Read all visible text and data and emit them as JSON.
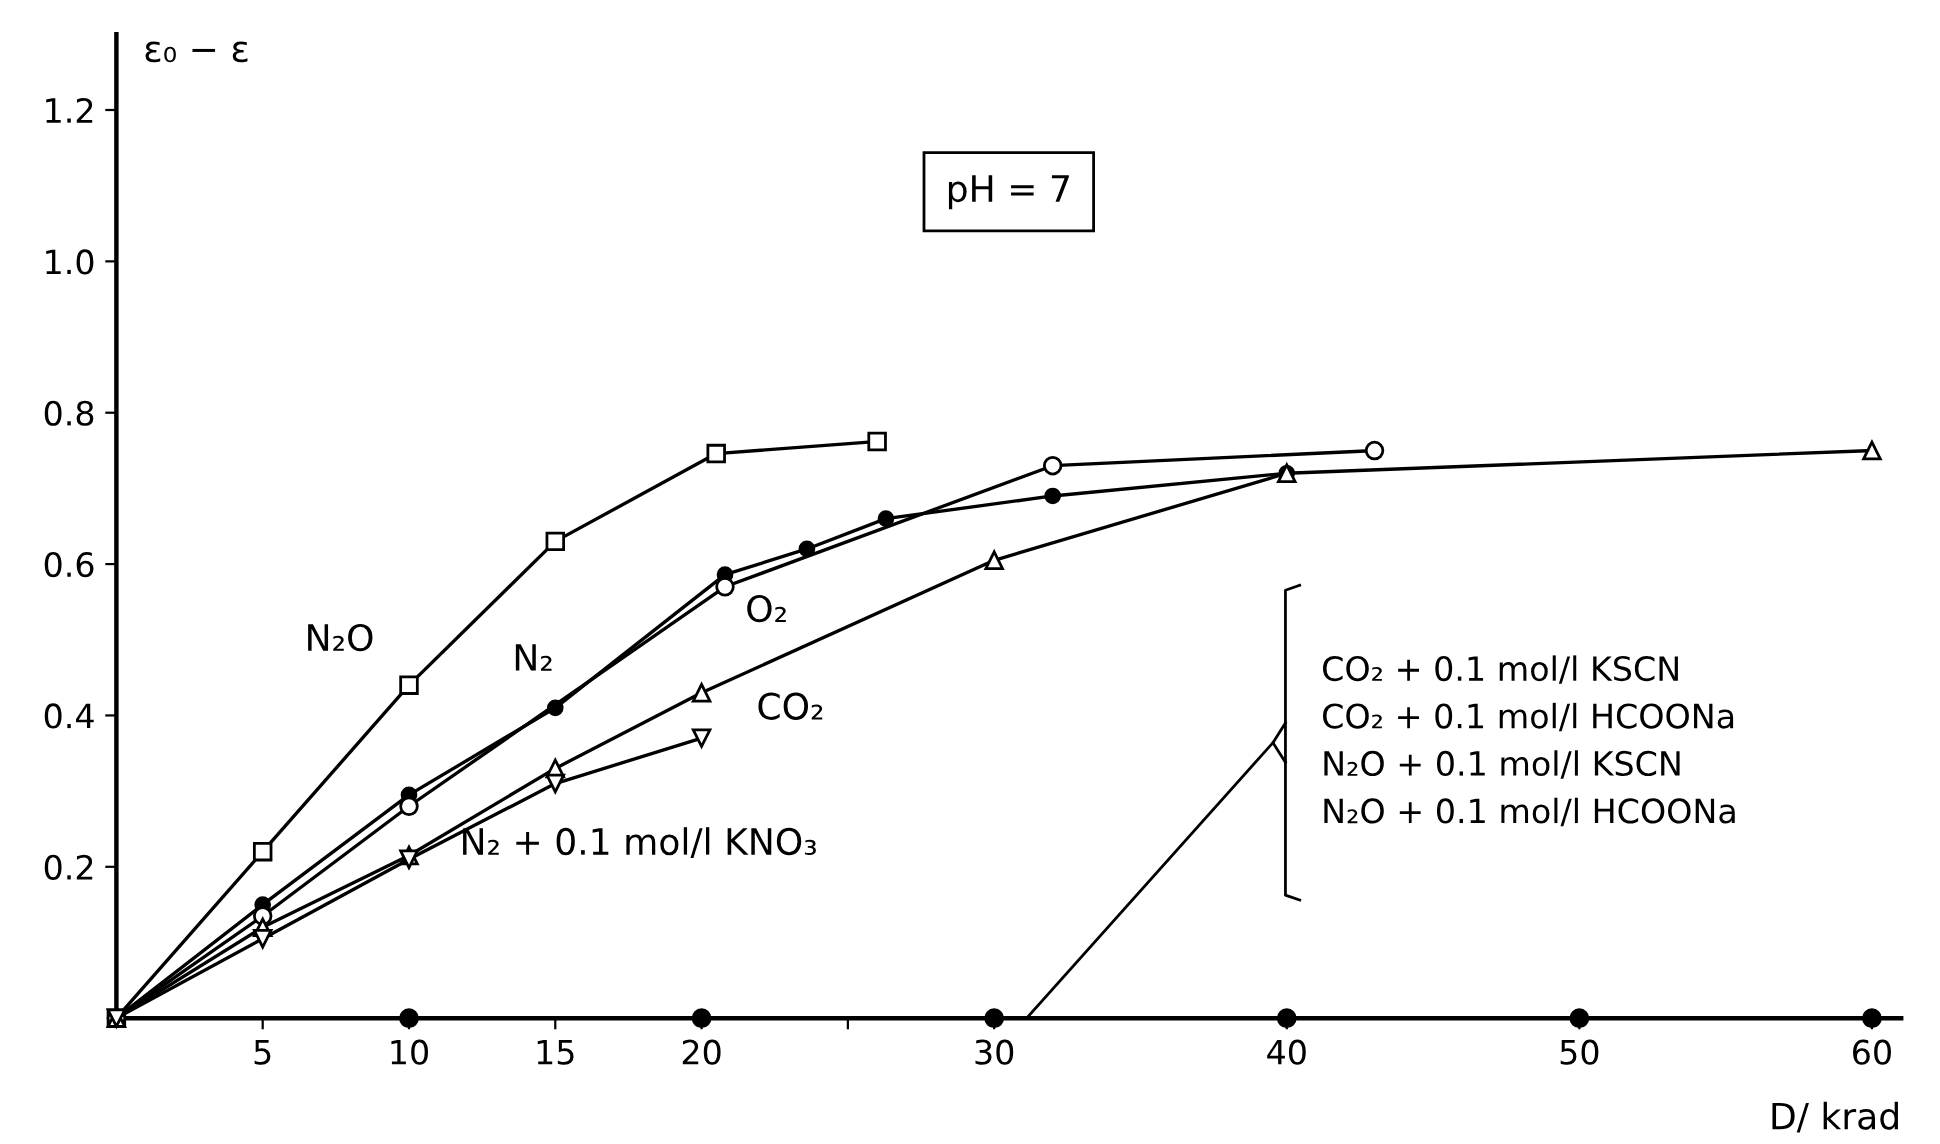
{
  "chart_data": {
    "type": "line",
    "xlabel": "D/ krad",
    "ylabel": "ε₀ − ε",
    "xlim": [
      0,
      61
    ],
    "ylim": [
      0,
      1.3
    ],
    "xticks": [
      5,
      10,
      15,
      20,
      {
        "value": 25,
        "label": null
      },
      30,
      40,
      50,
      60
    ],
    "yticks": [
      0.2,
      0.4,
      0.6,
      0.8,
      {
        "value": 1.0,
        "label": "1.0"
      },
      1.2
    ],
    "grid": false,
    "legend": false,
    "annotations": [
      "pH = 7",
      "CO₂ + 0.1 mol/l KSCN\nCO₂ + 0.1 mol/l HCOONa\nN₂O + 0.1 mol/l KSCN\nN₂O + 0.1 mol/l HCOONa"
    ],
    "series": [
      {
        "name": "N₂O",
        "color": "#000000",
        "marker": "square",
        "x": [
          0,
          5,
          10,
          15,
          20.5,
          26
        ],
        "values": [
          0,
          0.22,
          0.44,
          0.63,
          0.746,
          0.762
        ]
      },
      {
        "name": "N₂",
        "color": "#000000",
        "marker": "point",
        "x": [
          0,
          5,
          10,
          15,
          20.8,
          23.6,
          26.3,
          32,
          40
        ],
        "values": [
          0,
          0.15,
          0.295,
          0.41,
          0.586,
          0.62,
          0.66,
          0.69,
          0.72
        ]
      },
      {
        "name": "O₂",
        "color": "#000000",
        "marker": "circle",
        "x": [
          0,
          5,
          10,
          20.8,
          32,
          43
        ],
        "values": [
          0,
          0.135,
          0.28,
          0.57,
          0.73,
          0.75
        ]
      },
      {
        "name": "CO₂",
        "color": "#000000",
        "marker": "triangle",
        "x": [
          0,
          5,
          10,
          15,
          20,
          30,
          40,
          60
        ],
        "values": [
          0,
          0.12,
          0.215,
          0.33,
          0.43,
          0.605,
          0.72,
          0.75
        ]
      },
      {
        "name": "N₂ + 0.1 mol/l KNO₃",
        "color": "#000000",
        "marker": "triangle_down",
        "x": [
          0,
          5,
          10,
          15,
          20
        ],
        "values": [
          0,
          0.105,
          0.21,
          0.31,
          0.37
        ]
      },
      {
        "type": "scatter",
        "color": "#000000",
        "marker": "point",
        "x": [
          10,
          20,
          30,
          40,
          50,
          60
        ],
        "values": [
          0,
          0,
          0,
          0,
          0,
          0
        ]
      }
    ]
  }
}
